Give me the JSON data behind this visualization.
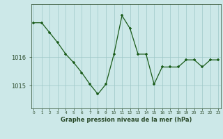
{
  "hours": [
    0,
    1,
    2,
    3,
    4,
    5,
    6,
    7,
    8,
    9,
    10,
    11,
    12,
    13,
    14,
    15,
    16,
    17,
    18,
    19,
    20,
    21,
    22,
    23
  ],
  "pressure": [
    1017.2,
    1017.2,
    1016.85,
    1016.5,
    1016.1,
    1015.8,
    1015.45,
    1015.05,
    1014.7,
    1015.05,
    1016.1,
    1017.45,
    1017.0,
    1016.1,
    1016.1,
    1015.05,
    1015.65,
    1015.65,
    1015.65,
    1015.9,
    1015.9,
    1015.65,
    1015.9,
    1015.9
  ],
  "line_color": "#1a5c1a",
  "marker_color": "#1a5c1a",
  "bg_color": "#cce8e8",
  "grid_color": "#9ec8c8",
  "axis_color": "#2a4a2a",
  "xlabel": "Graphe pression niveau de la mer (hPa)",
  "yticks": [
    1015,
    1016
  ],
  "ylim": [
    1014.2,
    1017.85
  ],
  "xlim": [
    -0.3,
    23.3
  ]
}
